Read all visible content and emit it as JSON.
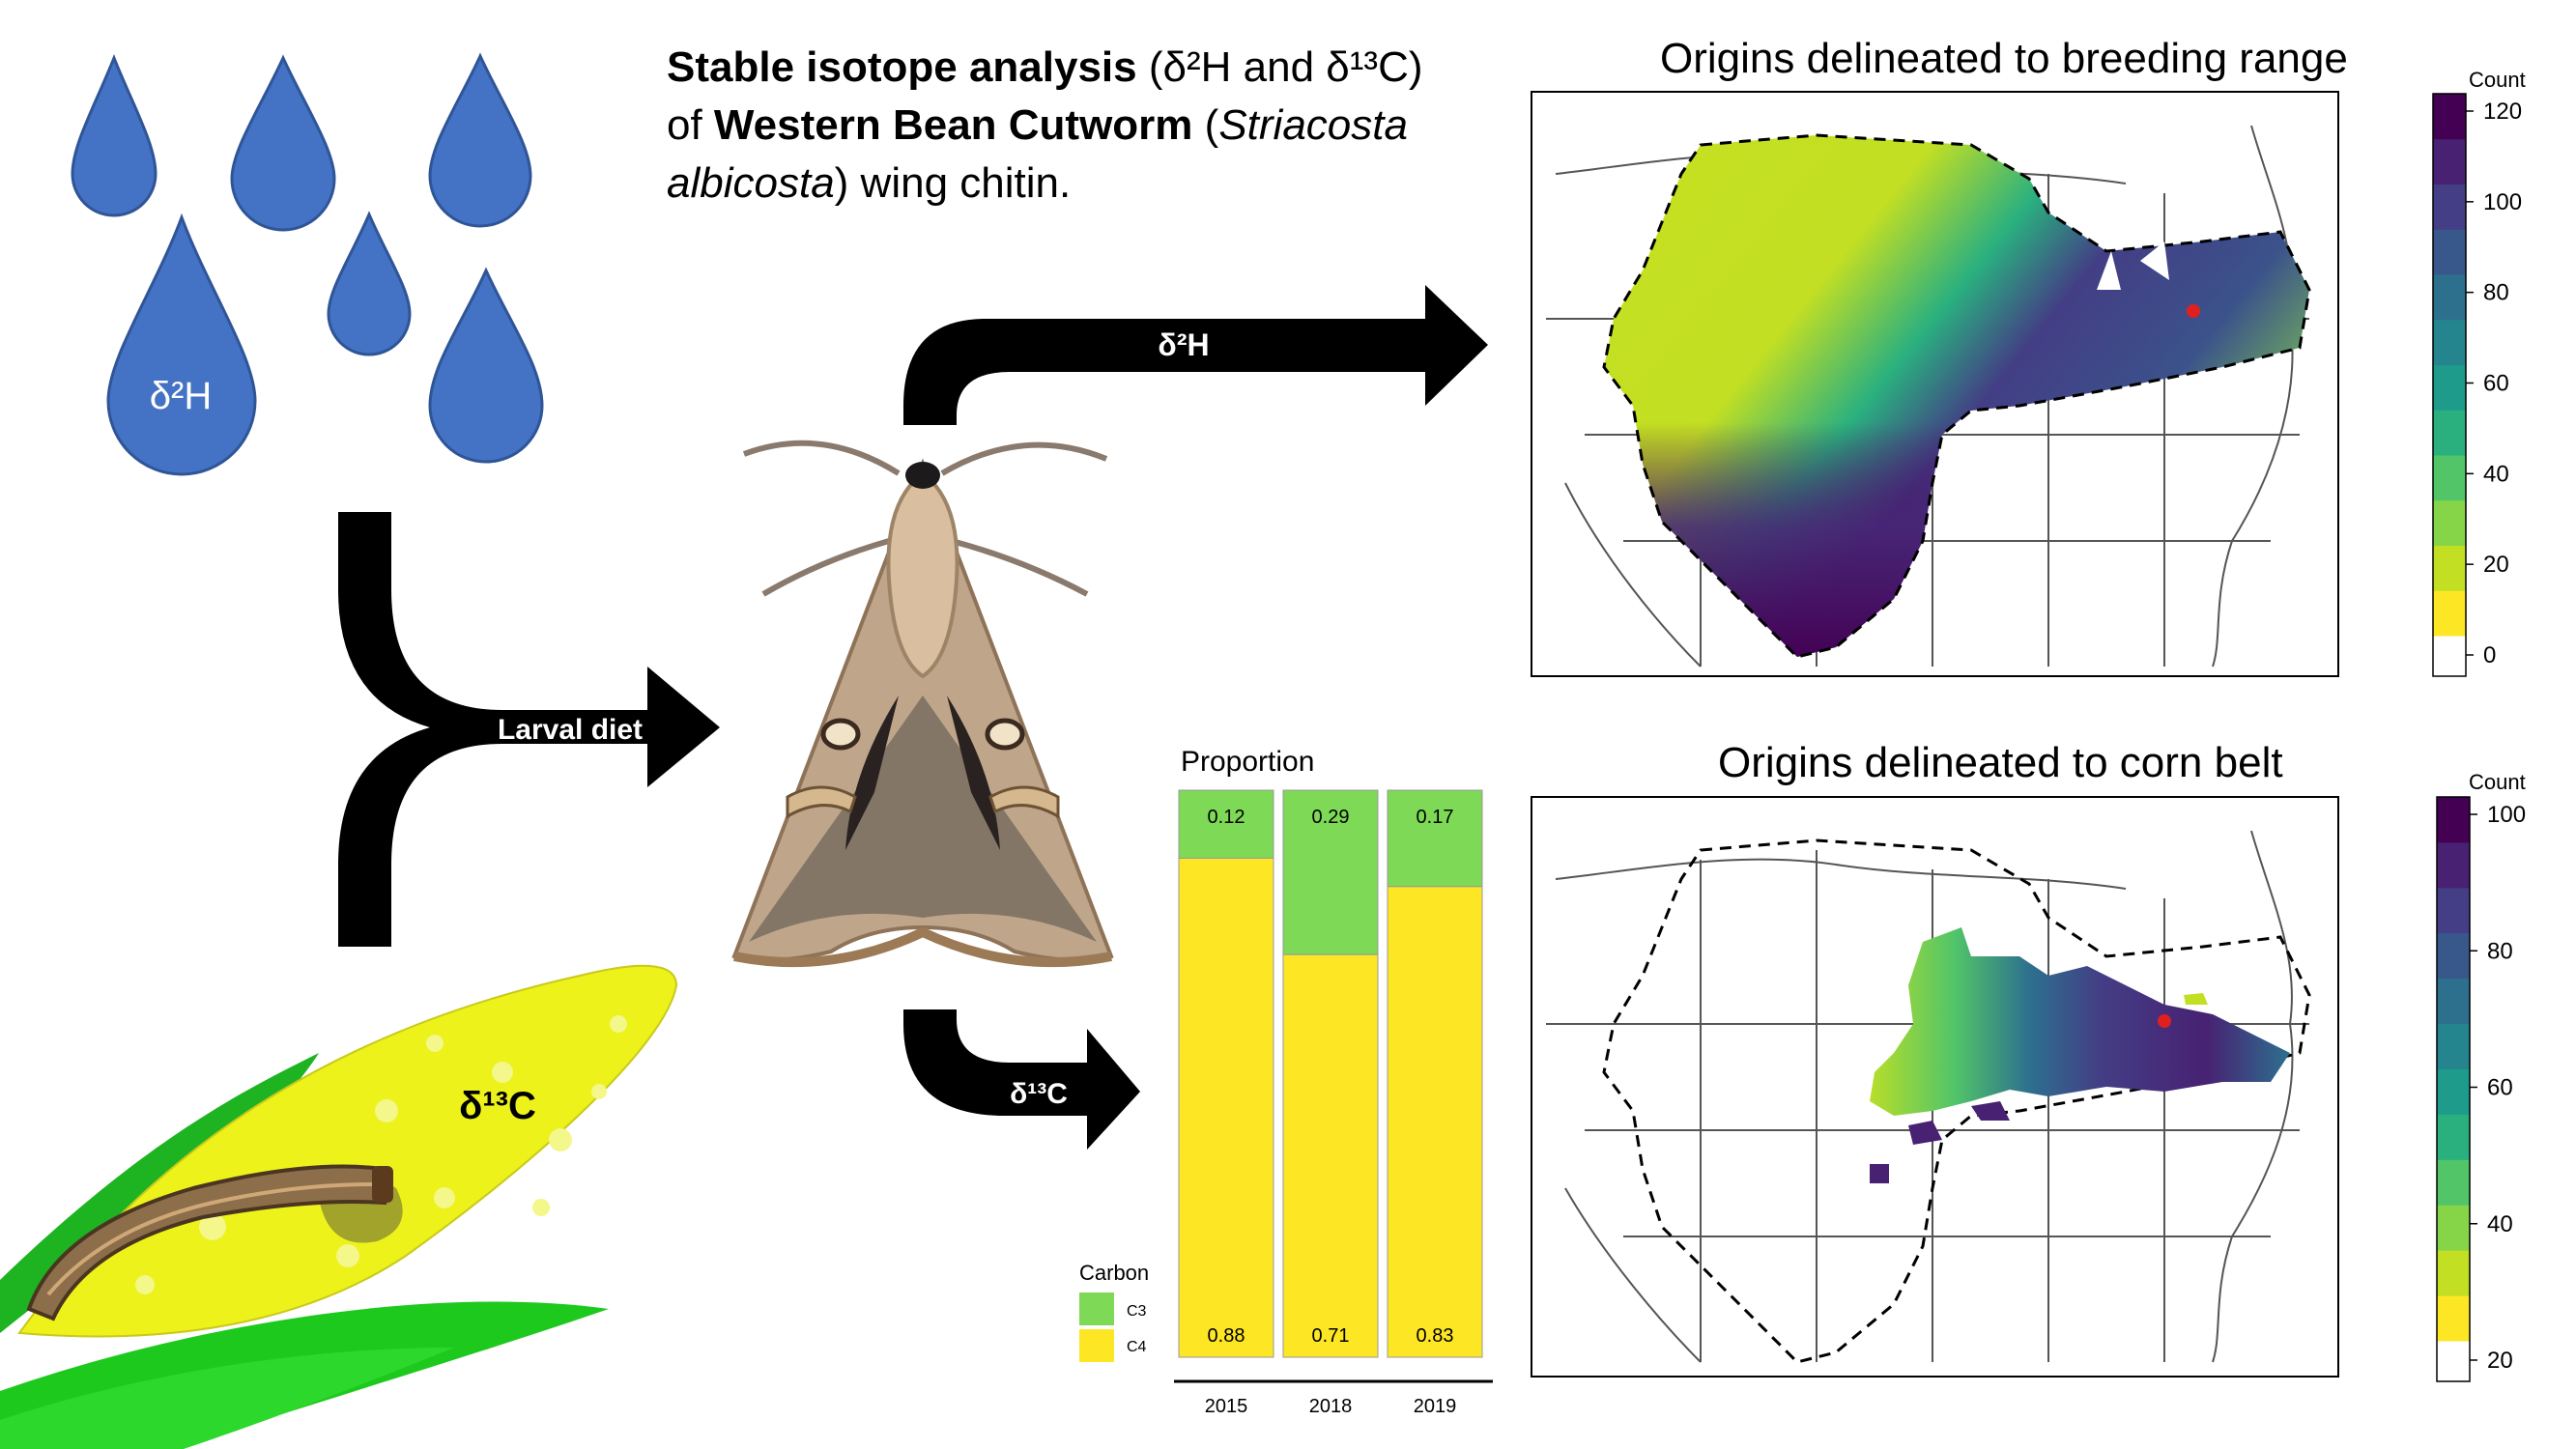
{
  "title": {
    "line1_bold": "Stable isotope analysis",
    "line1_rest": " (δ²H and δ¹³C)",
    "line2_pre": "of ",
    "line2_bold": "Western Bean Cutworm",
    "line2_open": " (",
    "line2_italic": "Striacosta",
    "line3_italic": "albicosta",
    "line3_rest": ") wing chitin."
  },
  "labels": {
    "rain_isotope": "δ²H",
    "corn_isotope": "δ¹³C",
    "larval_diet": "Larval diet",
    "arrow_h": "δ²H",
    "arrow_c": "δ¹³C"
  },
  "maps": [
    {
      "title": "Origins delineated to breeding range",
      "legend_title": "Count",
      "ticks": [
        "120",
        "100",
        "80",
        "60",
        "40",
        "20",
        "0"
      ]
    },
    {
      "title": "Origins delineated to corn belt",
      "legend_title": "Count",
      "ticks": [
        "100",
        "80",
        "60",
        "40",
        "20"
      ]
    }
  ],
  "chart_data": {
    "type": "bar",
    "title": "Proportion",
    "categories": [
      "2015",
      "2018",
      "2019"
    ],
    "series": [
      {
        "name": "C3",
        "values": [
          0.12,
          0.29,
          0.17
        ],
        "color": "#7ED957"
      },
      {
        "name": "C4",
        "values": [
          0.88,
          0.71,
          0.83
        ],
        "color": "#FDE725"
      }
    ],
    "ylim": [
      0,
      1
    ],
    "legend": {
      "title": "Carbon",
      "position": "bottom-left"
    }
  },
  "colors": {
    "viridis": [
      "#FDE725",
      "#C2DF23",
      "#86D549",
      "#52C569",
      "#2AB07F",
      "#1E9B8A",
      "#25858E",
      "#2D708E",
      "#38588C",
      "#433E85",
      "#482173",
      "#440154"
    ],
    "water": "#4472C4",
    "arrow": "#000000"
  }
}
